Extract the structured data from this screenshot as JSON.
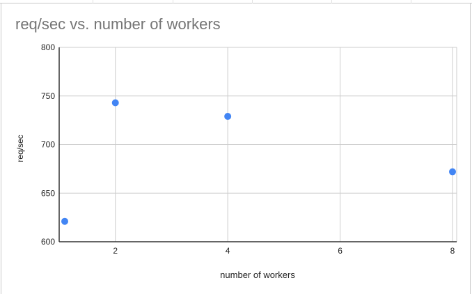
{
  "chart_data": {
    "type": "scatter",
    "title": "req/sec vs. number of workers",
    "xlabel": "number of workers",
    "ylabel": "req/sec",
    "xlim": [
      1,
      8
    ],
    "ylim": [
      600,
      800
    ],
    "x_ticks": [
      2,
      4,
      6,
      8
    ],
    "y_ticks": [
      600,
      650,
      700,
      750,
      800
    ],
    "grid": true,
    "legend": "none",
    "point_color": "#4285f4",
    "points": [
      {
        "x": 1,
        "y": 621
      },
      {
        "x": 2,
        "y": 743
      },
      {
        "x": 4,
        "y": 729
      },
      {
        "x": 8,
        "y": 672
      }
    ]
  }
}
